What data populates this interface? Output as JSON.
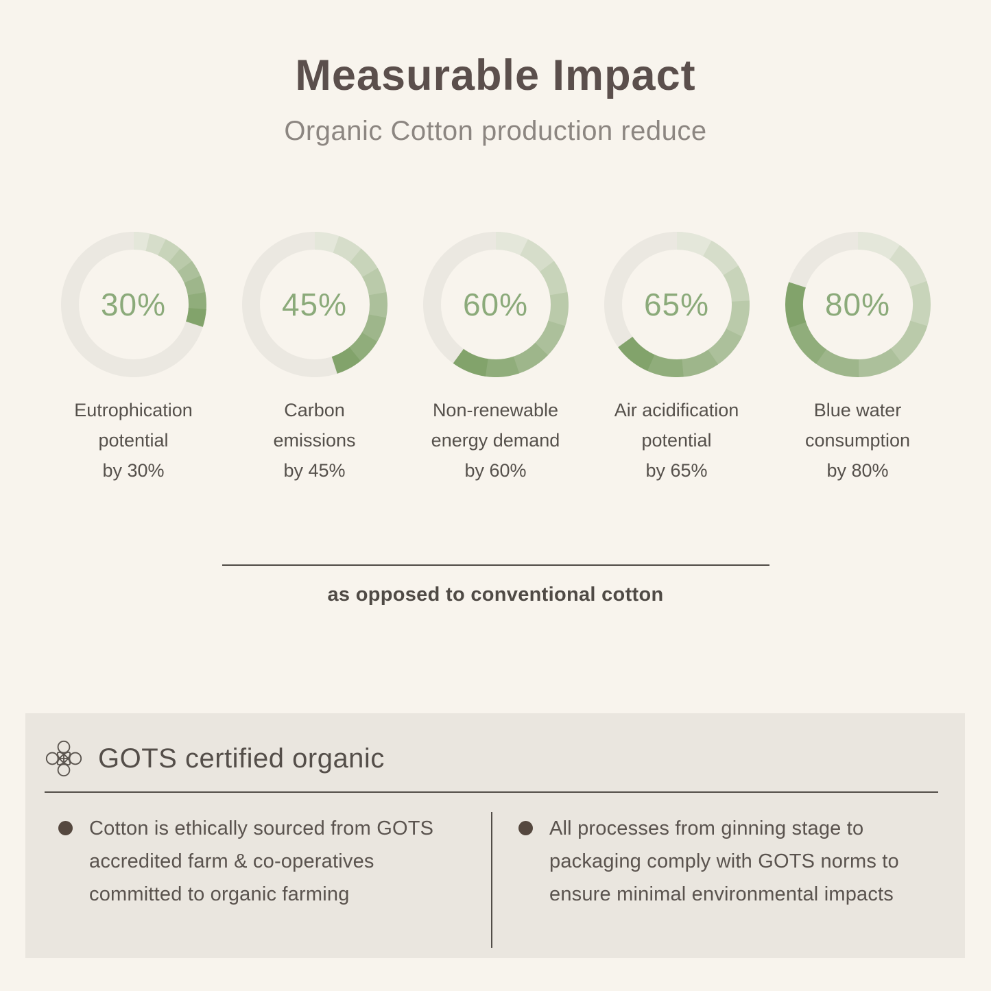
{
  "page": {
    "background": "#f8f4ed",
    "title": "Measurable Impact",
    "subtitle": "Organic Cotton production reduce"
  },
  "chart_data": {
    "type": "pie",
    "variant": "donut_progress_rings",
    "title": "Measurable Impact",
    "subtitle": "Organic Cotton production reduce",
    "unit": "%",
    "start_angle": "12 o'clock",
    "direction": "clockwise",
    "segments_per_arc": 8,
    "items": [
      {
        "value": 30,
        "value_label": "30%",
        "label": "Eutrophication potential by 30%",
        "label_lines": [
          "Eutrophication",
          "potential",
          "by 30%"
        ]
      },
      {
        "value": 45,
        "value_label": "45%",
        "label": "Carbon emissions by 45%",
        "label_lines": [
          "Carbon",
          "emissions",
          "by 45%"
        ]
      },
      {
        "value": 60,
        "value_label": "60%",
        "label": "Non-renewable energy demand by 60%",
        "label_lines": [
          "Non-renewable",
          "energy demand",
          "by 60%"
        ]
      },
      {
        "value": 65,
        "value_label": "65%",
        "label": "Air acidification potential by 65%",
        "label_lines": [
          "Air acidification",
          "potential",
          "by 65%"
        ]
      },
      {
        "value": 80,
        "value_label": "80%",
        "label": "Blue water consumption by 80%",
        "label_lines": [
          "Blue water",
          "consumption",
          "by 80%"
        ]
      }
    ],
    "colors": {
      "track": "#ebe8e1",
      "arc_gradient_start": "#e4e7da",
      "arc_gradient_end": "#82a36b",
      "value_text": "#8baa7a"
    }
  },
  "footnote": {
    "text": "as opposed to conventional cotton"
  },
  "gots_panel": {
    "heading": "GOTS certified organic",
    "icon": "knot-flower-icon",
    "background": "#eae6df",
    "bullets": [
      {
        "text": "Cotton is ethically sourced from GOTS accredited farm & co-operatives committed to organic farming",
        "lines": [
          "Cotton is ethically sourced from GOTS",
          "accredited farm & co-operatives",
          "committed to organic farming"
        ]
      },
      {
        "text": "All processes from ginning stage to packaging comply with GOTS norms to ensure minimal environmental impacts",
        "lines": [
          "All processes from ginning stage to",
          "packaging comply with GOTS norms to",
          "ensure minimal environmental impacts"
        ]
      }
    ]
  }
}
